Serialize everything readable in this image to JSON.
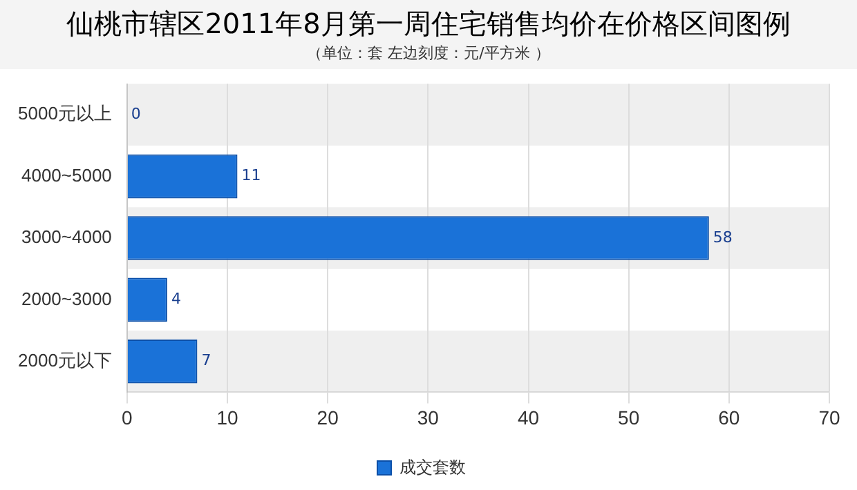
{
  "chart_data": {
    "type": "bar",
    "orientation": "horizontal",
    "title": "仙桃市辖区2011年8月第一周住宅销售均价在价格区间图例",
    "subtitle": "（单位：套   左边刻度：元/平方米 ）",
    "categories": [
      "5000元以上",
      "4000~5000",
      "3000~4000",
      "2000~3000",
      "2000元以下"
    ],
    "series": [
      {
        "name": "成交套数",
        "color": "#1a72d8",
        "values": [
          0,
          11,
          58,
          4,
          7
        ]
      }
    ],
    "xlim": [
      0,
      70
    ],
    "xticks": [
      0,
      10,
      20,
      30,
      40,
      50,
      60,
      70
    ],
    "grid": "x",
    "legend": "bottom",
    "data_labels": true
  }
}
